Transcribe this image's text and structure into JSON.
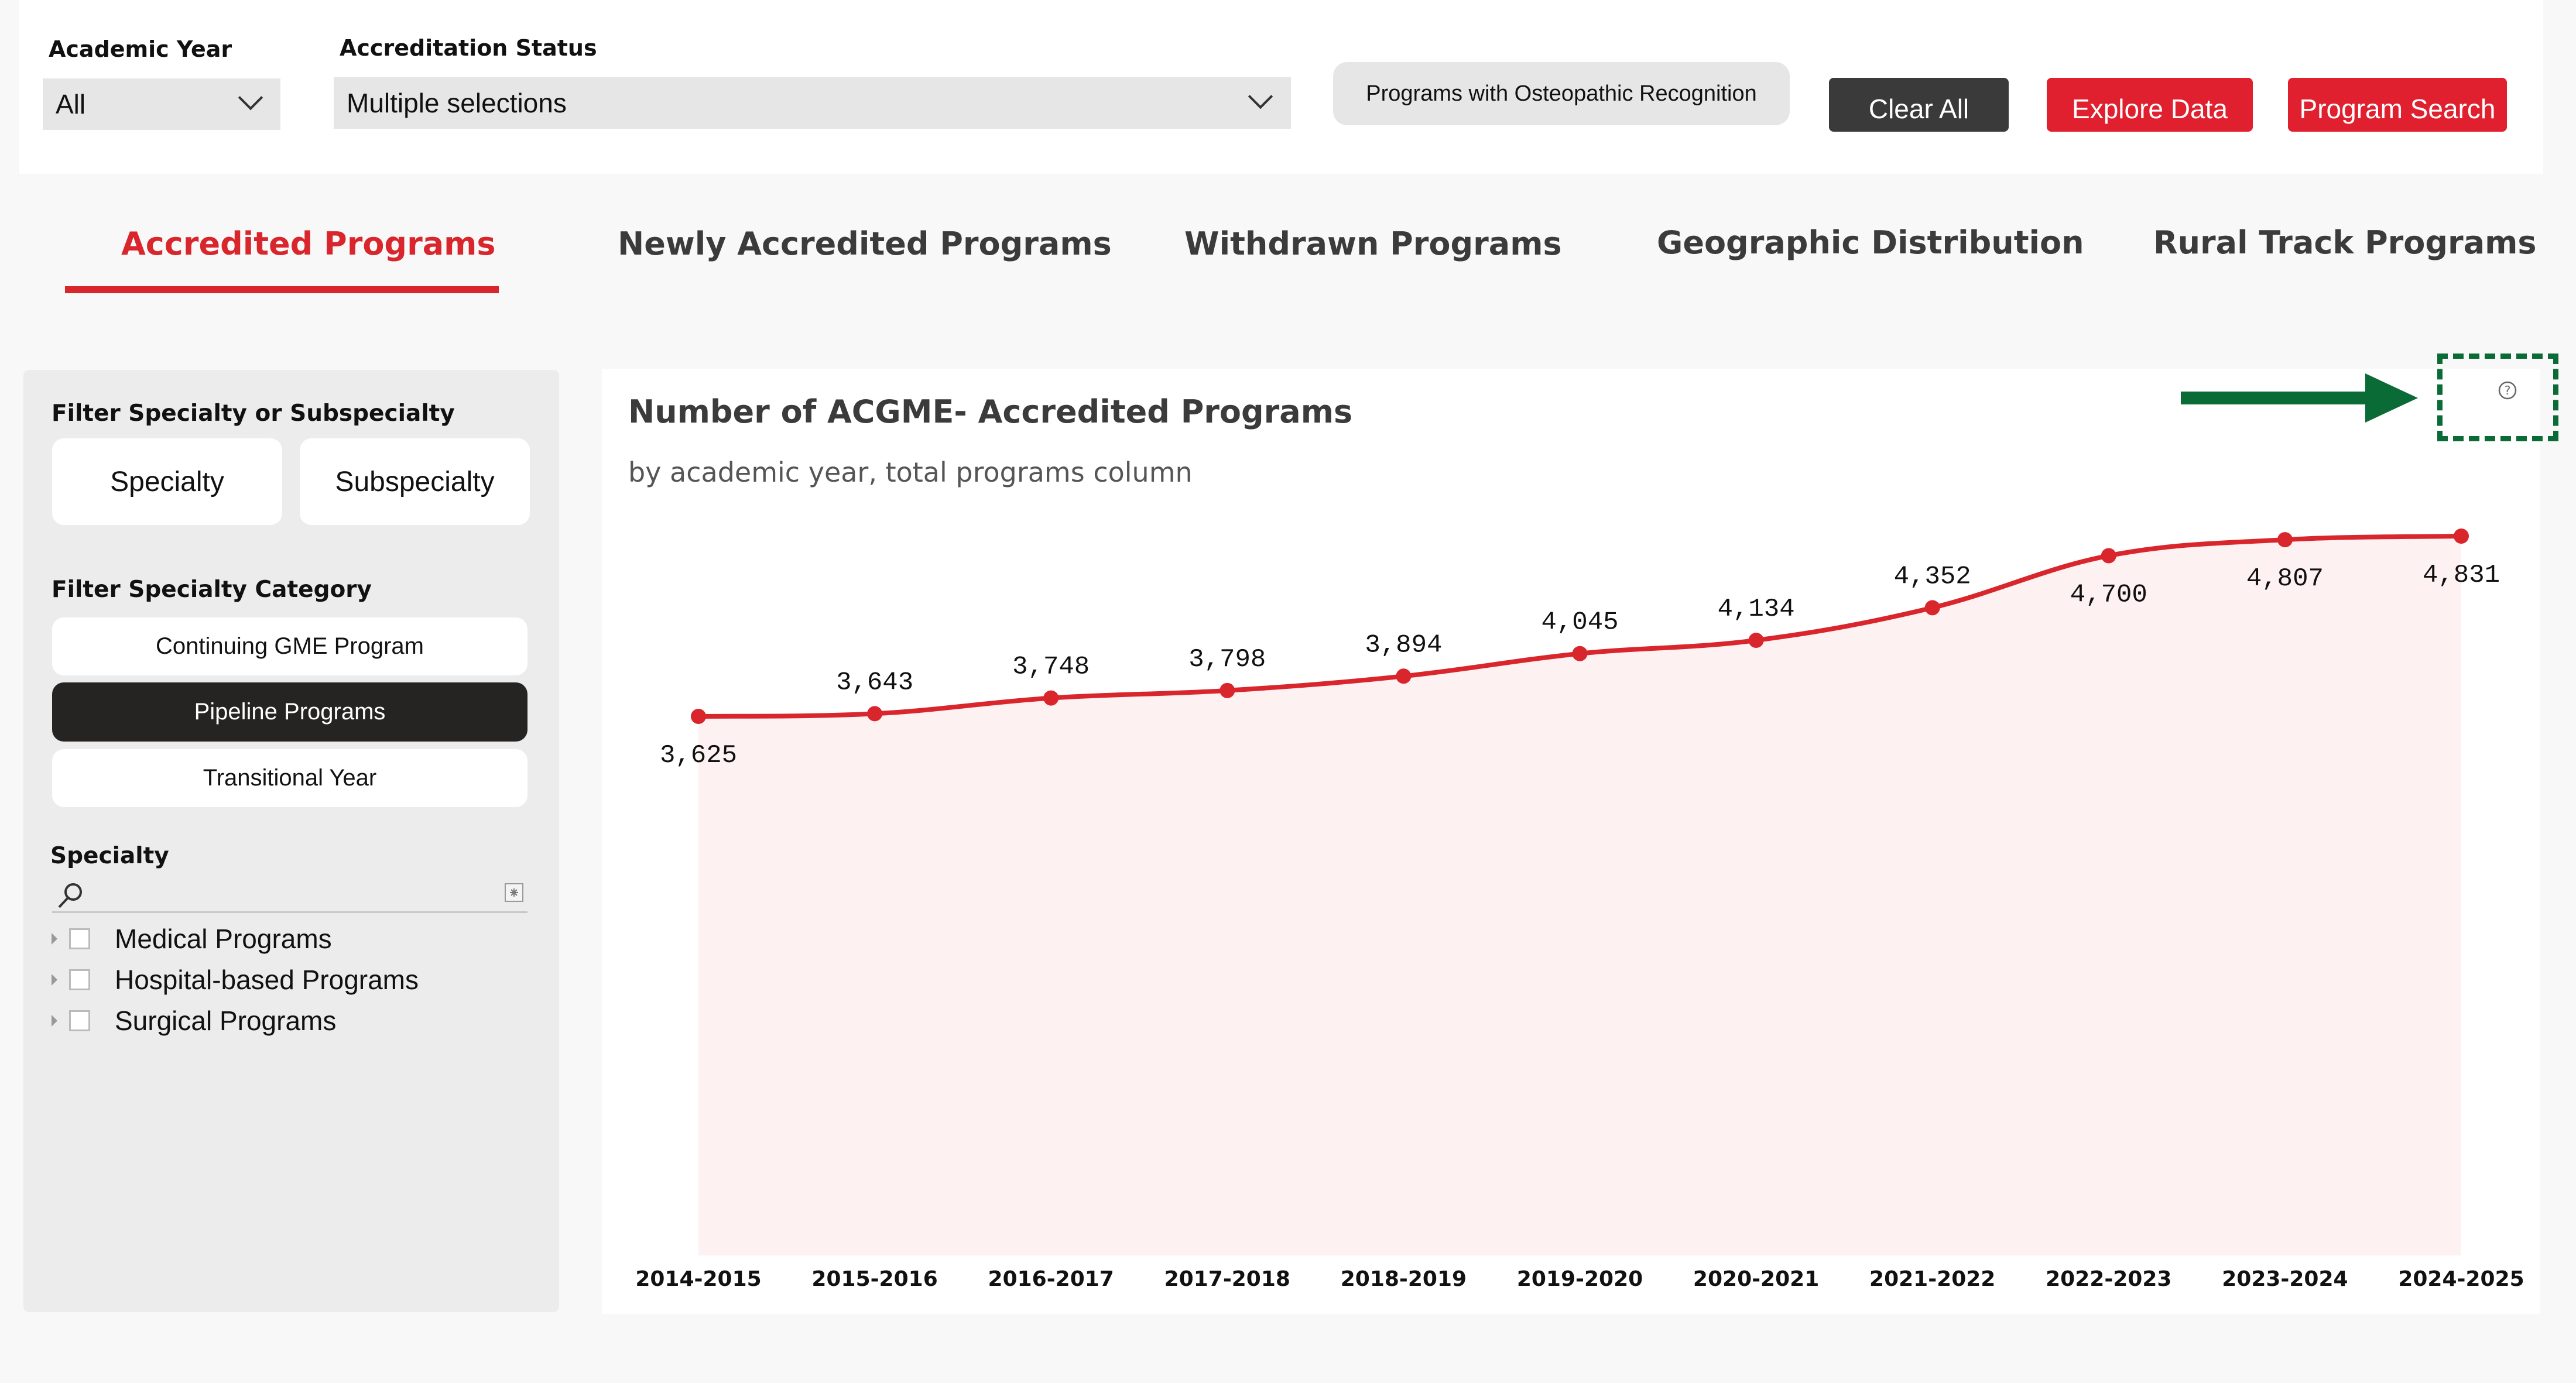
{
  "filters": {
    "academic_year_label": "Academic Year",
    "academic_year_value": "All",
    "accreditation_status_label": "Accreditation Status",
    "accreditation_status_value": "Multiple selections",
    "osteopathic_label": "Programs with Osteopathic Recognition",
    "clear_all": "Clear All",
    "explore_data": "Explore Data",
    "program_search": "Program Search"
  },
  "tabs": [
    {
      "label": "Accredited Programs",
      "active": true
    },
    {
      "label": "Newly Accredited Programs",
      "active": false
    },
    {
      "label": "Withdrawn Programs",
      "active": false
    },
    {
      "label": "Geographic Distribution",
      "active": false
    },
    {
      "label": "Rural Track Programs",
      "active": false
    }
  ],
  "sidebar": {
    "filter_specialty_title": "Filter Specialty or Subspecialty",
    "specialty_button": "Specialty",
    "subspecialty_button": "Subspecialty",
    "filter_category_title": "Filter Specialty Category",
    "categories": [
      {
        "label": "Continuing GME Program",
        "selected": false
      },
      {
        "label": "Pipeline Programs",
        "selected": true
      },
      {
        "label": "Transitional Year",
        "selected": false
      }
    ],
    "specialty_list_title": "Specialty",
    "specialty_items": [
      "Medical Programs",
      "Hospital-based Programs",
      "Surgical Programs"
    ]
  },
  "colors": {
    "accent_red": "#d9262c",
    "line": "#d9262c",
    "area_fill": "#fdf1f1",
    "annotation_green": "#0b6b36"
  },
  "icons": {
    "help": "question-circle-icon",
    "search": "magnifier-icon",
    "clear": "eraser-icon"
  },
  "chart_data": {
    "type": "area",
    "title": "Number of ACGME- Accredited Programs",
    "subtitle": "by academic year, total programs column",
    "categories": [
      "2014-2015",
      "2015-2016",
      "2016-2017",
      "2017-2018",
      "2018-2019",
      "2019-2020",
      "2020-2021",
      "2021-2022",
      "2022-2023",
      "2023-2024",
      "2024-2025"
    ],
    "values": [
      3625,
      3643,
      3748,
      3798,
      3894,
      4045,
      4134,
      4352,
      4700,
      4807,
      4831
    ],
    "labels": [
      "3,625",
      "3,643",
      "3,748",
      "3,798",
      "3,894",
      "4,045",
      "4,134",
      "4,352",
      "4,700",
      "4,807",
      "4,831"
    ],
    "label_below": [
      true,
      false,
      false,
      false,
      false,
      false,
      false,
      false,
      true,
      true,
      true
    ],
    "ylim": [
      0,
      4900
    ],
    "grid": false,
    "legend": "none"
  }
}
